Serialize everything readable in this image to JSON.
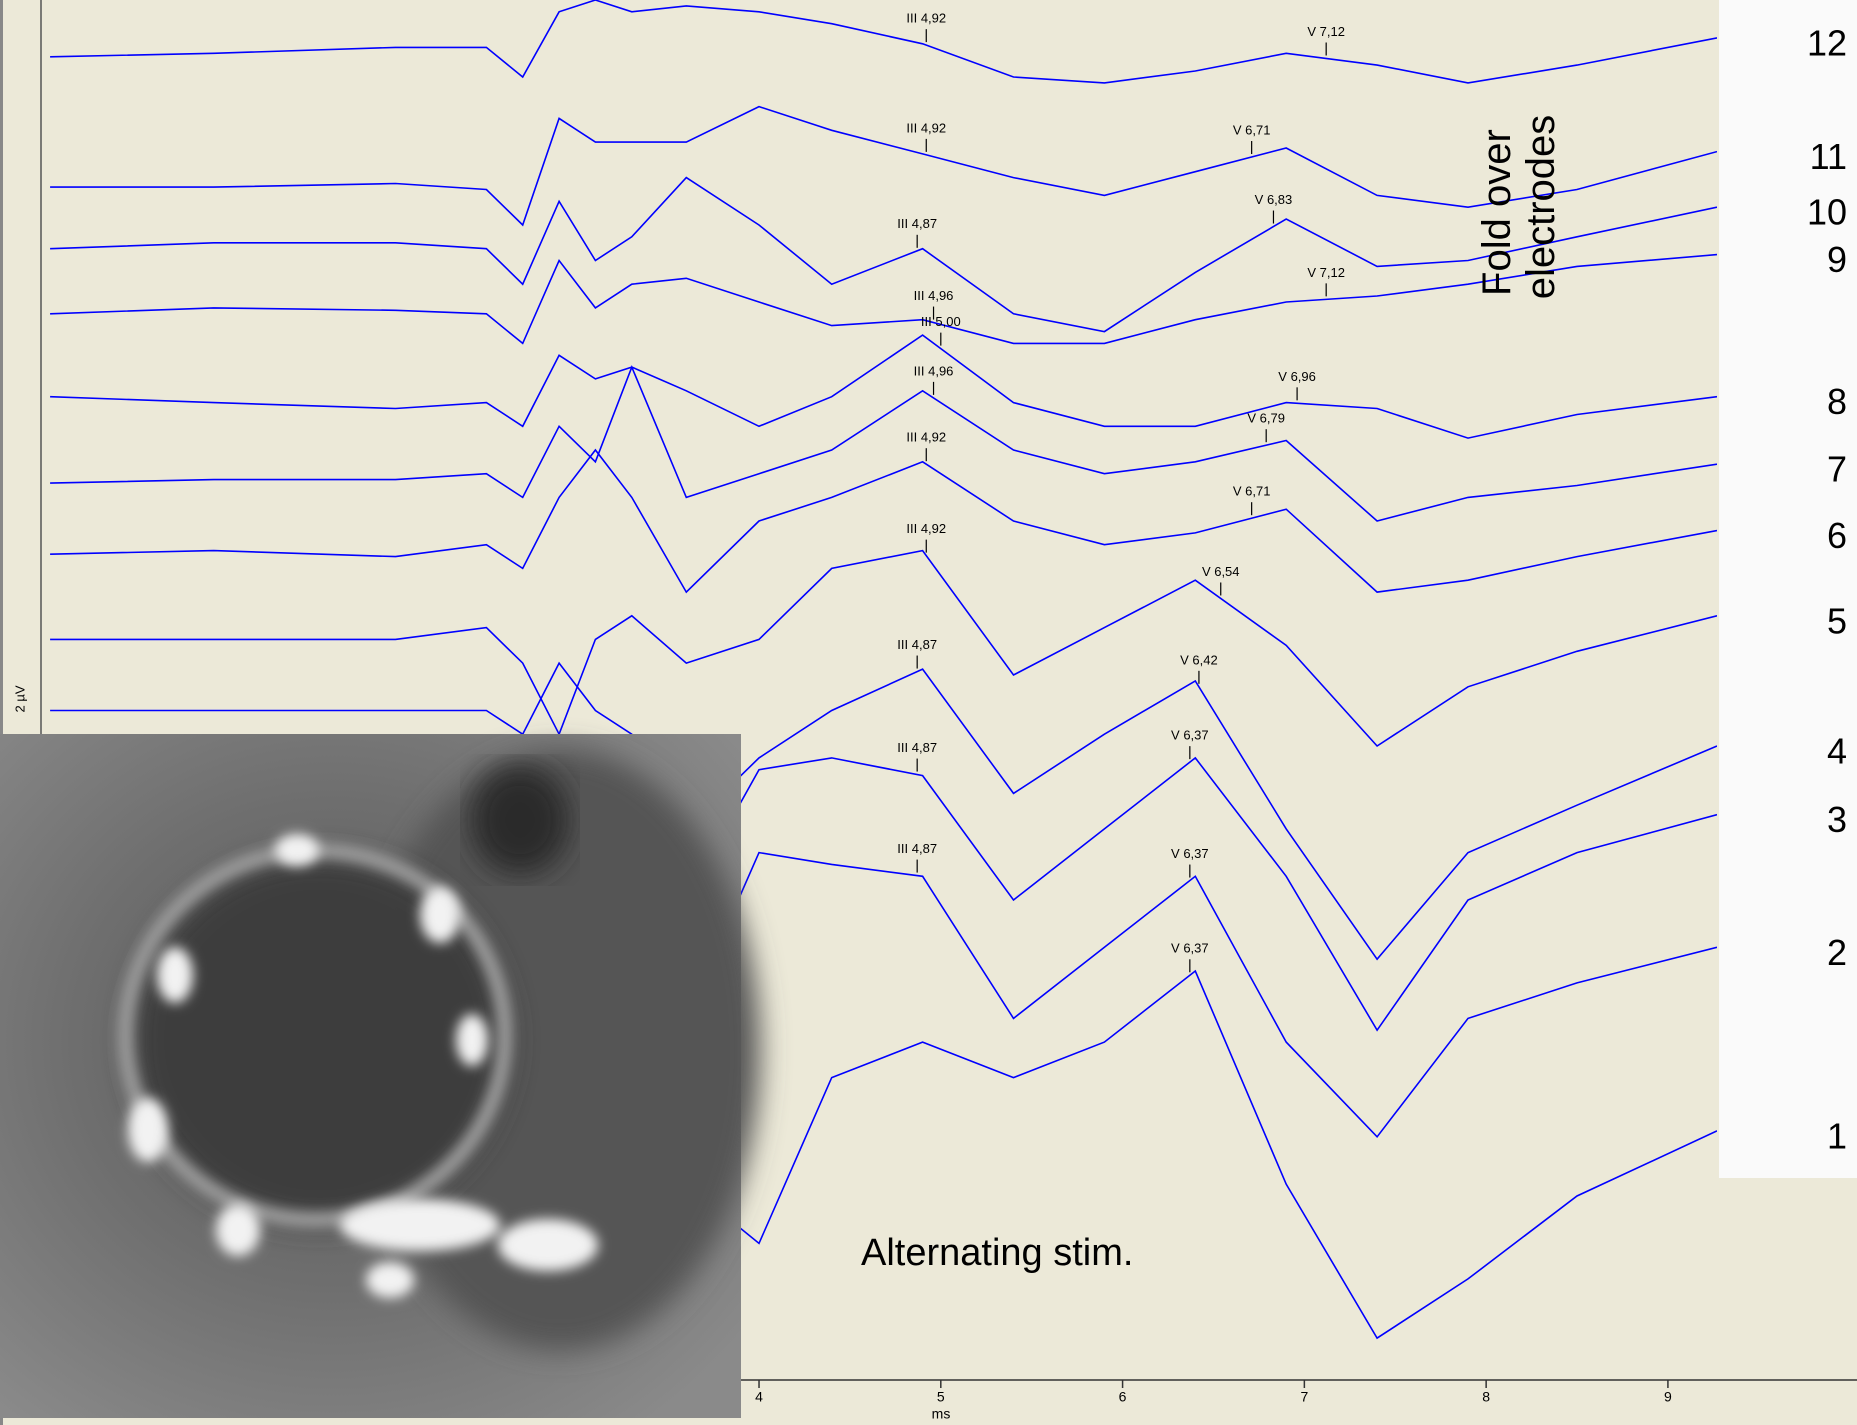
{
  "chart_data": {
    "type": "line",
    "x_label": "ms",
    "y_label": "2 µV",
    "fold_text": [
      "Fold over",
      "electrodes"
    ],
    "stim_text": "Alternating stim.",
    "color": "#0000ff",
    "xlim": [
      0.05,
      9.27
    ],
    "ylim": [
      1200,
      0
    ],
    "xticks": [
      4,
      5,
      6,
      7,
      8,
      9
    ],
    "x": [
      0.1,
      1.0,
      2.0,
      2.5,
      2.7,
      2.9,
      3.1,
      3.3,
      3.6,
      4.0,
      4.4,
      4.9,
      5.4,
      5.9,
      6.4,
      6.9,
      7.4,
      7.9,
      8.5,
      9.27
    ],
    "series": [
      {
        "name": "12",
        "values": [
          48,
          45,
          40,
          40,
          65,
          10,
          0,
          10,
          5,
          10,
          20,
          37,
          65,
          70,
          60,
          45,
          55,
          70,
          55,
          32
        ],
        "peaks": [
          {
            "value": 4.92,
            "label": "III 4,92"
          },
          {
            "value": 7.12,
            "label": "V 7,12"
          }
        ]
      },
      {
        "name": "11",
        "values": [
          158,
          158,
          155,
          160,
          190,
          100,
          120,
          120,
          120,
          90,
          110,
          130,
          150,
          165,
          145,
          125,
          165,
          175,
          160,
          128
        ],
        "peaks": [
          {
            "value": 4.92,
            "label": "III 4,92"
          },
          {
            "value": 6.71,
            "label": "V 6,71"
          }
        ]
      },
      {
        "name": "10",
        "values": [
          210,
          205,
          205,
          210,
          240,
          170,
          220,
          200,
          150,
          190,
          240,
          210,
          265,
          280,
          230,
          185,
          225,
          220,
          200,
          175
        ],
        "peaks": [
          {
            "value": 4.87,
            "label": "III 4,87"
          },
          {
            "value": 6.83,
            "label": "V 6,83"
          }
        ]
      },
      {
        "name": "9",
        "values": [
          265,
          260,
          262,
          265,
          290,
          220,
          260,
          240,
          235,
          255,
          275,
          270,
          290,
          290,
          270,
          255,
          250,
          240,
          225,
          215
        ],
        "peaks": [
          {
            "value": 4.96,
            "label": "III 4,96"
          },
          {
            "value": 7.12,
            "label": "V 7,12"
          }
        ]
      },
      {
        "name": "8",
        "values": [
          335,
          340,
          345,
          340,
          360,
          300,
          320,
          310,
          330,
          360,
          335,
          283,
          340,
          360,
          360,
          340,
          345,
          370,
          350,
          335
        ],
        "peaks": [
          {
            "value": 5.0,
            "label": "III 5,00"
          },
          {
            "value": 6.96,
            "label": "V 6,96"
          }
        ]
      },
      {
        "name": "7",
        "values": [
          408,
          405,
          405,
          400,
          420,
          360,
          390,
          310,
          420,
          400,
          380,
          330,
          380,
          400,
          390,
          372,
          440,
          420,
          410,
          392
        ],
        "peaks": [
          {
            "value": 4.96,
            "label": "III 4,96"
          },
          {
            "value": 6.79,
            "label": "V 6,79"
          }
        ]
      },
      {
        "name": "6",
        "values": [
          468,
          465,
          470,
          460,
          480,
          420,
          380,
          420,
          500,
          440,
          420,
          390,
          440,
          460,
          450,
          430,
          500,
          490,
          470,
          448
        ],
        "peaks": [
          {
            "value": 4.92,
            "label": "III 4,92"
          },
          {
            "value": 6.71,
            "label": "V 6,71"
          }
        ]
      },
      {
        "name": "5",
        "values": [
          540,
          540,
          540,
          530,
          560,
          620,
          540,
          520,
          560,
          540,
          480,
          465,
          570,
          530,
          490,
          545,
          630,
          580,
          550,
          520
        ],
        "peaks": [
          {
            "value": 4.92,
            "label": "III 4,92"
          },
          {
            "value": 6.54,
            "label": "V 6,54"
          }
        ]
      },
      {
        "name": "4",
        "values": [
          600,
          600,
          600,
          600,
          620,
          560,
          600,
          620,
          700,
          640,
          600,
          565,
          670,
          620,
          575,
          700,
          810,
          720,
          680,
          630
        ],
        "peaks": [
          {
            "value": 4.87,
            "label": "III 4,87"
          },
          {
            "value": 6.42,
            "label": "V 6,42"
          }
        ]
      },
      {
        "name": "3",
        "values": [
          680,
          680,
          680,
          680,
          700,
          640,
          680,
          700,
          760,
          650,
          640,
          655,
          760,
          700,
          640,
          740,
          870,
          760,
          720,
          688
        ],
        "peaks": [
          {
            "value": 4.87,
            "label": "III 4,87"
          },
          {
            "value": 6.37,
            "label": "V 6,37"
          }
        ]
      },
      {
        "name": "2",
        "values": [
          780,
          780,
          780,
          780,
          800,
          740,
          780,
          800,
          860,
          720,
          730,
          740,
          860,
          800,
          740,
          880,
          960,
          860,
          830,
          800
        ],
        "peaks": [
          {
            "value": 4.87,
            "label": "III 4,87"
          },
          {
            "value": 6.37,
            "label": "V 6,37"
          }
        ]
      },
      {
        "name": "1",
        "values": [
          900,
          900,
          900,
          900,
          920,
          860,
          900,
          920,
          1000,
          1050,
          910,
          880,
          910,
          880,
          820,
          1000,
          1130,
          1080,
          1010,
          955
        ],
        "peaks": [
          {
            "value": 6.37,
            "label": "V 6,37"
          }
        ]
      }
    ]
  }
}
